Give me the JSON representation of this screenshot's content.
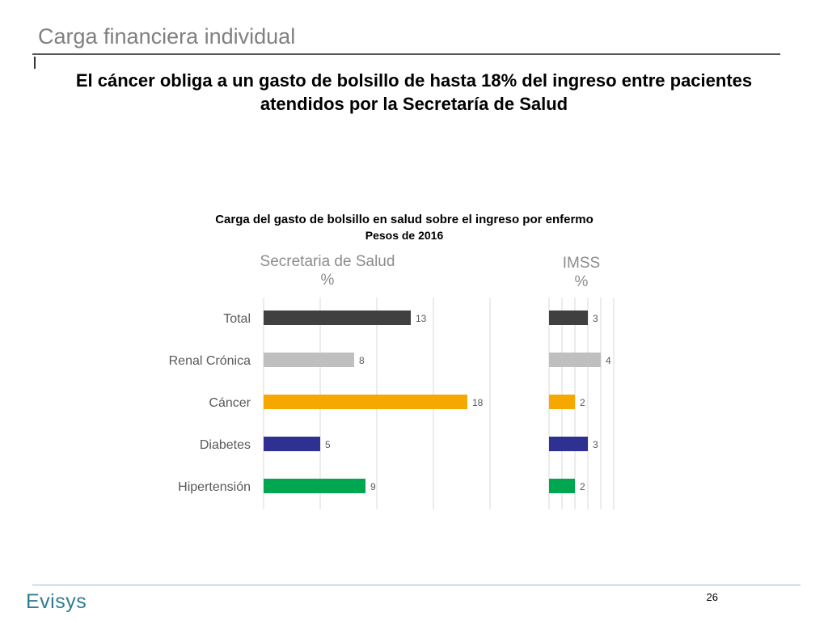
{
  "slide": {
    "title": "Carga financiera individual",
    "headline": "El cáncer obliga a un gasto de bolsillo de hasta 18% del ingreso entre pacientes atendidos por la Secretaría de Salud",
    "page_number": "26",
    "logo_text": "Evisys"
  },
  "chart_data": {
    "type": "bar",
    "orientation": "horizontal",
    "title": "Carga del gasto de bolsillo en salud sobre el ingreso por enfermo",
    "subtitle": "Pesos de 2016",
    "categories": [
      "Total",
      "Renal Crónica",
      "Cáncer",
      "Diabetes",
      "Hipertensión"
    ],
    "colors": [
      "#404040",
      "#bfbfbf",
      "#f5a800",
      "#2e3192",
      "#00a650"
    ],
    "grid": true,
    "panels": [
      {
        "name": "Secretaria de Salud",
        "unit": "%",
        "values": [
          13,
          8,
          18,
          5,
          9
        ],
        "xlim": [
          0,
          20
        ]
      },
      {
        "name": "IMSS",
        "unit": "%",
        "values": [
          3,
          4,
          2,
          3,
          2
        ],
        "xlim": [
          0,
          5
        ]
      }
    ]
  }
}
